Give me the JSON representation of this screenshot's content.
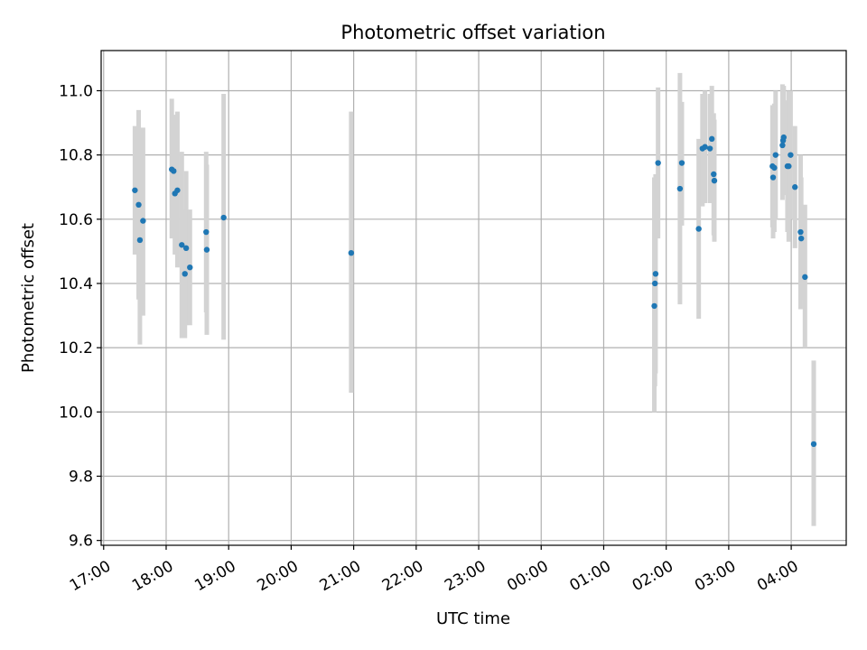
{
  "chart_data": {
    "type": "scatter",
    "title": "Photometric offset variation",
    "xlabel": "UTC time",
    "ylabel": "Photometric offset",
    "x_ticks": [
      {
        "value": -7.0,
        "label": "17:00"
      },
      {
        "value": -6.0,
        "label": "18:00"
      },
      {
        "value": -5.0,
        "label": "19:00"
      },
      {
        "value": -4.0,
        "label": "20:00"
      },
      {
        "value": -3.0,
        "label": "21:00"
      },
      {
        "value": -2.0,
        "label": "22:00"
      },
      {
        "value": -1.0,
        "label": "23:00"
      },
      {
        "value": 0.0,
        "label": "00:00"
      },
      {
        "value": 1.0,
        "label": "01:00"
      },
      {
        "value": 2.0,
        "label": "02:00"
      },
      {
        "value": 3.0,
        "label": "03:00"
      },
      {
        "value": 4.0,
        "label": "04:00"
      }
    ],
    "y_ticks": [
      {
        "value": 9.6,
        "label": "9.6"
      },
      {
        "value": 9.8,
        "label": "9.8"
      },
      {
        "value": 10.0,
        "label": "10.0"
      },
      {
        "value": 10.2,
        "label": "10.2"
      },
      {
        "value": 10.4,
        "label": "10.4"
      },
      {
        "value": 10.6,
        "label": "10.6"
      },
      {
        "value": 10.8,
        "label": "10.8"
      },
      {
        "value": 11.0,
        "label": "11.0"
      }
    ],
    "xlim": [
      -7.04,
      4.88
    ],
    "ylim": [
      9.585,
      11.125
    ],
    "grid": true,
    "colors": {
      "point": "#1f77b4",
      "errorbar": "#d3d3d3",
      "grid": "#b0b0b0"
    },
    "points": [
      {
        "x": -6.5,
        "y": 10.69,
        "lo": 10.49,
        "hi": 10.89
      },
      {
        "x": -6.44,
        "y": 10.645,
        "lo": 10.35,
        "hi": 10.94
      },
      {
        "x": -6.42,
        "y": 10.535,
        "lo": 10.21,
        "hi": 10.86
      },
      {
        "x": -6.37,
        "y": 10.595,
        "lo": 10.3,
        "hi": 10.885
      },
      {
        "x": -5.91,
        "y": 10.755,
        "lo": 10.54,
        "hi": 10.975
      },
      {
        "x": -5.88,
        "y": 10.75,
        "lo": 10.58,
        "hi": 10.925
      },
      {
        "x": -5.86,
        "y": 10.68,
        "lo": 10.49,
        "hi": 10.87
      },
      {
        "x": -5.82,
        "y": 10.69,
        "lo": 10.45,
        "hi": 10.935
      },
      {
        "x": -5.75,
        "y": 10.52,
        "lo": 10.23,
        "hi": 10.81
      },
      {
        "x": -5.7,
        "y": 10.43,
        "lo": 10.23,
        "hi": 10.63
      },
      {
        "x": -5.68,
        "y": 10.51,
        "lo": 10.27,
        "hi": 10.75
      },
      {
        "x": -5.62,
        "y": 10.45,
        "lo": 10.27,
        "hi": 10.63
      },
      {
        "x": -5.36,
        "y": 10.56,
        "lo": 10.31,
        "hi": 10.81
      },
      {
        "x": -5.35,
        "y": 10.505,
        "lo": 10.24,
        "hi": 10.77
      },
      {
        "x": -5.08,
        "y": 10.605,
        "lo": 10.225,
        "hi": 10.99
      },
      {
        "x": -3.04,
        "y": 10.495,
        "lo": 10.06,
        "hi": 10.935
      },
      {
        "x": 1.81,
        "y": 10.33,
        "lo": 10.0,
        "hi": 10.73
      },
      {
        "x": 1.82,
        "y": 10.4,
        "lo": 10.08,
        "hi": 10.73
      },
      {
        "x": 1.83,
        "y": 10.43,
        "lo": 10.12,
        "hi": 10.74
      },
      {
        "x": 1.87,
        "y": 10.775,
        "lo": 10.54,
        "hi": 11.01
      },
      {
        "x": 2.22,
        "y": 10.695,
        "lo": 10.335,
        "hi": 11.055
      },
      {
        "x": 2.25,
        "y": 10.775,
        "lo": 10.58,
        "hi": 10.965
      },
      {
        "x": 2.52,
        "y": 10.57,
        "lo": 10.29,
        "hi": 10.85
      },
      {
        "x": 2.58,
        "y": 10.82,
        "lo": 10.64,
        "hi": 10.99
      },
      {
        "x": 2.62,
        "y": 10.825,
        "lo": 10.65,
        "hi": 11.0
      },
      {
        "x": 2.7,
        "y": 10.82,
        "lo": 10.65,
        "hi": 10.99
      },
      {
        "x": 2.73,
        "y": 10.85,
        "lo": 10.69,
        "hi": 11.015
      },
      {
        "x": 2.76,
        "y": 10.74,
        "lo": 10.55,
        "hi": 10.93
      },
      {
        "x": 2.77,
        "y": 10.72,
        "lo": 10.53,
        "hi": 10.91
      },
      {
        "x": 3.7,
        "y": 10.765,
        "lo": 10.575,
        "hi": 10.955
      },
      {
        "x": 3.71,
        "y": 10.73,
        "lo": 10.54,
        "hi": 10.92
      },
      {
        "x": 3.73,
        "y": 10.76,
        "lo": 10.56,
        "hi": 10.96
      },
      {
        "x": 3.75,
        "y": 10.8,
        "lo": 10.6,
        "hi": 11.0
      },
      {
        "x": 3.86,
        "y": 10.83,
        "lo": 10.66,
        "hi": 11.02
      },
      {
        "x": 3.87,
        "y": 10.845,
        "lo": 10.675,
        "hi": 11.015
      },
      {
        "x": 3.88,
        "y": 10.855,
        "lo": 10.695,
        "hi": 11.015
      },
      {
        "x": 3.94,
        "y": 10.765,
        "lo": 10.56,
        "hi": 10.97
      },
      {
        "x": 3.96,
        "y": 10.765,
        "lo": 10.53,
        "hi": 11.0
      },
      {
        "x": 3.99,
        "y": 10.8,
        "lo": 10.6,
        "hi": 11.0
      },
      {
        "x": 4.06,
        "y": 10.7,
        "lo": 10.51,
        "hi": 10.89
      },
      {
        "x": 4.15,
        "y": 10.56,
        "lo": 10.32,
        "hi": 10.8
      },
      {
        "x": 4.16,
        "y": 10.54,
        "lo": 10.35,
        "hi": 10.73
      },
      {
        "x": 4.22,
        "y": 10.42,
        "lo": 10.2,
        "hi": 10.645
      },
      {
        "x": 4.36,
        "y": 9.9,
        "lo": 9.645,
        "hi": 10.16
      }
    ]
  }
}
